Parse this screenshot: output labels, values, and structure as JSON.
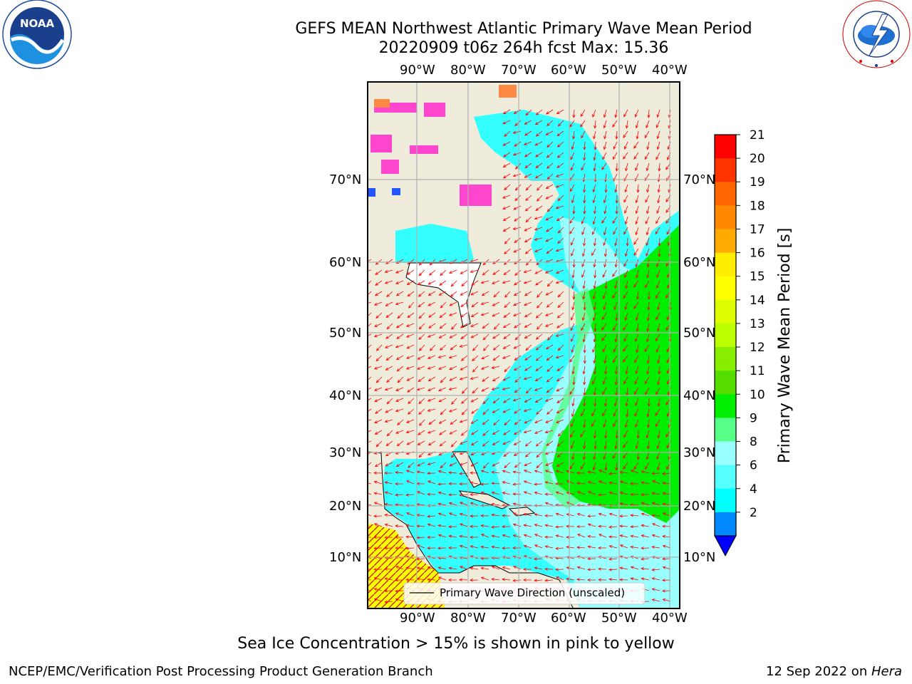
{
  "header": {
    "title_line1": "GEFS MEAN Northwest Atlantic Primary Wave Mean Period",
    "title_line2": "20220909 t06z 264h fcst   Max: 15.36"
  },
  "logos": {
    "left": {
      "text": "NOAA",
      "ring_text": "NATIONAL OCEANIC AND ATMOSPHERIC ADMINISTRATION · U.S. DEPARTMENT OF COMMERCE"
    },
    "right": {
      "ring_text": "NATIONAL WEATHER SERVICE"
    }
  },
  "map": {
    "lon_labels": [
      "90°W",
      "80°W",
      "70°W",
      "60°W",
      "50°W",
      "40°W"
    ],
    "lat_labels": [
      "70°N",
      "60°N",
      "50°N",
      "40°N",
      "30°N",
      "20°N",
      "10°N"
    ],
    "legend_label": "Primary Wave Direction (unscaled)",
    "colors": {
      "land": "#efecdc",
      "ocean_low": "#33ffff",
      "ocean_mid": "#99ffff",
      "ocean_high": "#00ee00",
      "arrow": "#ff0000",
      "ice": "#ff33cc",
      "yellow": "#ffff00"
    }
  },
  "colorbar": {
    "label": "Primary Wave Mean Period [s]",
    "ticks": [
      "21",
      "20",
      "19",
      "18",
      "17",
      "16",
      "15",
      "14",
      "13",
      "12",
      "11",
      "10",
      "9",
      "8",
      "6",
      "4",
      "2"
    ],
    "colors": [
      "#ff0000",
      "#ff3300",
      "#ff6600",
      "#ff8800",
      "#ffaa00",
      "#ffee00",
      "#ffff00",
      "#ddff00",
      "#bbff00",
      "#88ee00",
      "#55dd00",
      "#00ee00",
      "#55ff88",
      "#99ffff",
      "#55ffff",
      "#00ffff",
      "#0088ff"
    ],
    "extend_color": "#0000ff"
  },
  "caption": "Sea Ice Concentration > 15% is shown in pink to yellow",
  "footer": {
    "left": "NCEP/EMC/Verification Post Processing Product Generation Branch",
    "right_date": "12 Sep 2022 on ",
    "right_host": "Hera"
  }
}
